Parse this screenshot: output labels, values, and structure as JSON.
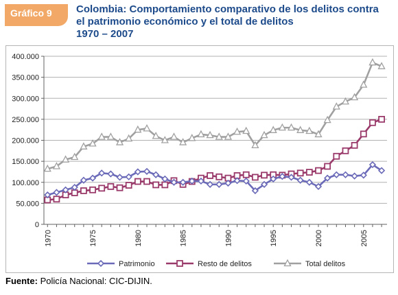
{
  "header": {
    "badge": "Gráfico 9",
    "title_line1": "Colombia: Comportamiento comparativo de los delitos contra",
    "title_line2": "el patrimonio económico y el total de delitos",
    "title_line3": "1970 – 2007"
  },
  "footer": {
    "source_label": "Fuente:",
    "source_text": " Policía Nacional: CIC-DIJIN."
  },
  "chart_data": {
    "type": "line",
    "x": [
      1970,
      1971,
      1972,
      1973,
      1974,
      1975,
      1976,
      1977,
      1978,
      1979,
      1980,
      1981,
      1982,
      1983,
      1984,
      1985,
      1986,
      1987,
      1988,
      1989,
      1990,
      1991,
      1992,
      1993,
      1994,
      1995,
      1996,
      1997,
      1998,
      1999,
      2000,
      2001,
      2002,
      2003,
      2004,
      2005,
      2006,
      2007
    ],
    "x_tick_labels": [
      "1970",
      "1975",
      "1980",
      "1985",
      "1990",
      "1995",
      "2000",
      "2005"
    ],
    "x_tick_values": [
      1970,
      1975,
      1980,
      1985,
      1990,
      1995,
      2000,
      2005
    ],
    "y_tick_labels": [
      "0",
      "50.000",
      "100.000",
      "150.000",
      "200.000",
      "250.000",
      "300.000",
      "350.000",
      "400.000"
    ],
    "ylim": [
      0,
      400000
    ],
    "legend_position": "bottom",
    "series": [
      {
        "name": "Patrimonio",
        "color": "#6a6ab8",
        "marker": "diamond",
        "values": [
          70000,
          76000,
          82000,
          88000,
          105000,
          110000,
          122000,
          120000,
          112000,
          113000,
          125000,
          126000,
          118000,
          108000,
          100000,
          100000,
          103000,
          103000,
          95000,
          95000,
          98000,
          104000,
          103000,
          80000,
          95000,
          108000,
          114000,
          112000,
          105000,
          100000,
          90000,
          110000,
          118000,
          118000,
          115000,
          117000,
          142000,
          128000
        ]
      },
      {
        "name": "Resto de delitos",
        "color": "#9a3a6a",
        "marker": "square",
        "values": [
          58000,
          60000,
          70000,
          75000,
          80000,
          82000,
          86000,
          90000,
          87000,
          93000,
          102000,
          102000,
          94000,
          94000,
          104000,
          95000,
          102000,
          110000,
          116000,
          113000,
          110000,
          116000,
          118000,
          112000,
          117000,
          118000,
          117000,
          120000,
          122000,
          124000,
          128000,
          138000,
          162000,
          175000,
          188000,
          215000,
          242000,
          250000
        ]
      },
      {
        "name": "Total delitos",
        "color": "#a0a0a0",
        "marker": "triangle",
        "values": [
          132000,
          138000,
          154000,
          160000,
          185000,
          192000,
          208000,
          208000,
          195000,
          204000,
          225000,
          228000,
          210000,
          200000,
          208000,
          195000,
          205000,
          214000,
          212000,
          208000,
          208000,
          220000,
          222000,
          188000,
          212000,
          224000,
          230000,
          230000,
          224000,
          222000,
          214000,
          248000,
          280000,
          292000,
          302000,
          332000,
          385000,
          376000
        ]
      }
    ]
  }
}
